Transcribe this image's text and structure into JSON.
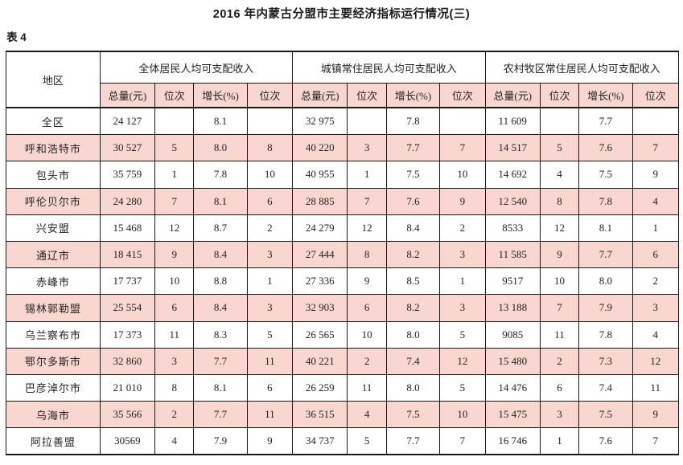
{
  "title": "2016 年内蒙古分盟市主要经济指标运行情况(三)",
  "table_label": "表 4",
  "colors": {
    "highlight_pink": "#f9d7d0",
    "border": "#1a1a1a",
    "text": "#222222",
    "background": "#ffffff"
  },
  "table": {
    "region_header": "地区",
    "groups": [
      {
        "label": "全体居民人均可支配收入",
        "sub": [
          "总量(元)",
          "位次",
          "增长(%)",
          "位次"
        ]
      },
      {
        "label": "城镇常住居民人均可支配收入",
        "sub": [
          "总量(元)",
          "位次",
          "增长(%)",
          "位次"
        ]
      },
      {
        "label": "农村牧区常住居民人均可支配收入",
        "sub": [
          "总量(元)",
          "位次",
          "增长(%)",
          "位次"
        ]
      }
    ],
    "rows": [
      {
        "region": "全区",
        "highlight": false,
        "values": [
          "24 127",
          "",
          "8.1",
          "",
          "32 975",
          "",
          "7.8",
          "",
          "11 609",
          "",
          "7.7",
          ""
        ]
      },
      {
        "region": "呼和浩特市",
        "highlight": true,
        "values": [
          "30 527",
          "5",
          "8.0",
          "8",
          "40 220",
          "3",
          "7.7",
          "7",
          "14 517",
          "5",
          "7.6",
          "7"
        ]
      },
      {
        "region": "包头市",
        "highlight": false,
        "values": [
          "35 759",
          "1",
          "7.8",
          "10",
          "40 955",
          "1",
          "7.5",
          "10",
          "14 692",
          "4",
          "7.5",
          "9"
        ]
      },
      {
        "region": "呼伦贝尔市",
        "highlight": true,
        "values": [
          "24 280",
          "7",
          "8.1",
          "6",
          "28 885",
          "7",
          "7.6",
          "9",
          "12 540",
          "8",
          "7.8",
          "4"
        ]
      },
      {
        "region": "兴安盟",
        "highlight": false,
        "values": [
          "15 468",
          "12",
          "8.7",
          "2",
          "24 279",
          "12",
          "8.4",
          "2",
          "8533",
          "12",
          "8.1",
          "1"
        ]
      },
      {
        "region": "通辽市",
        "highlight": true,
        "values": [
          "18 415",
          "9",
          "8.4",
          "3",
          "27 444",
          "8",
          "8.2",
          "3",
          "11 585",
          "9",
          "7.7",
          "6"
        ]
      },
      {
        "region": "赤峰市",
        "highlight": false,
        "values": [
          "17 737",
          "10",
          "8.8",
          "1",
          "27 336",
          "9",
          "8.5",
          "1",
          "9517",
          "10",
          "8.0",
          "2"
        ]
      },
      {
        "region": "锡林郭勒盟",
        "highlight": true,
        "values": [
          "25 554",
          "6",
          "8.4",
          "3",
          "32 903",
          "6",
          "8.2",
          "3",
          "13 188",
          "7",
          "7.9",
          "3"
        ]
      },
      {
        "region": "乌兰察布市",
        "highlight": false,
        "values": [
          "17 373",
          "11",
          "8.3",
          "5",
          "26 565",
          "10",
          "8.0",
          "5",
          "9085",
          "11",
          "7.8",
          "4"
        ]
      },
      {
        "region": "鄂尔多斯市",
        "highlight": true,
        "values": [
          "32 860",
          "3",
          "7.7",
          "11",
          "40 221",
          "2",
          "7.4",
          "12",
          "15 480",
          "2",
          "7.3",
          "12"
        ]
      },
      {
        "region": "巴彦淖尔市",
        "highlight": false,
        "values": [
          "21 010",
          "8",
          "8.1",
          "6",
          "26 259",
          "11",
          "8.0",
          "5",
          "14 476",
          "6",
          "7.4",
          "11"
        ]
      },
      {
        "region": "乌海市",
        "highlight": true,
        "values": [
          "35 566",
          "2",
          "7.7",
          "11",
          "36 515",
          "4",
          "7.5",
          "10",
          "15 475",
          "3",
          "7.5",
          "9"
        ]
      },
      {
        "region": "阿拉善盟",
        "highlight": false,
        "values": [
          "30569",
          "4",
          "7.9",
          "9",
          "34 737",
          "5",
          "7.7",
          "7",
          "16 746",
          "1",
          "7.6",
          "7"
        ]
      }
    ]
  }
}
